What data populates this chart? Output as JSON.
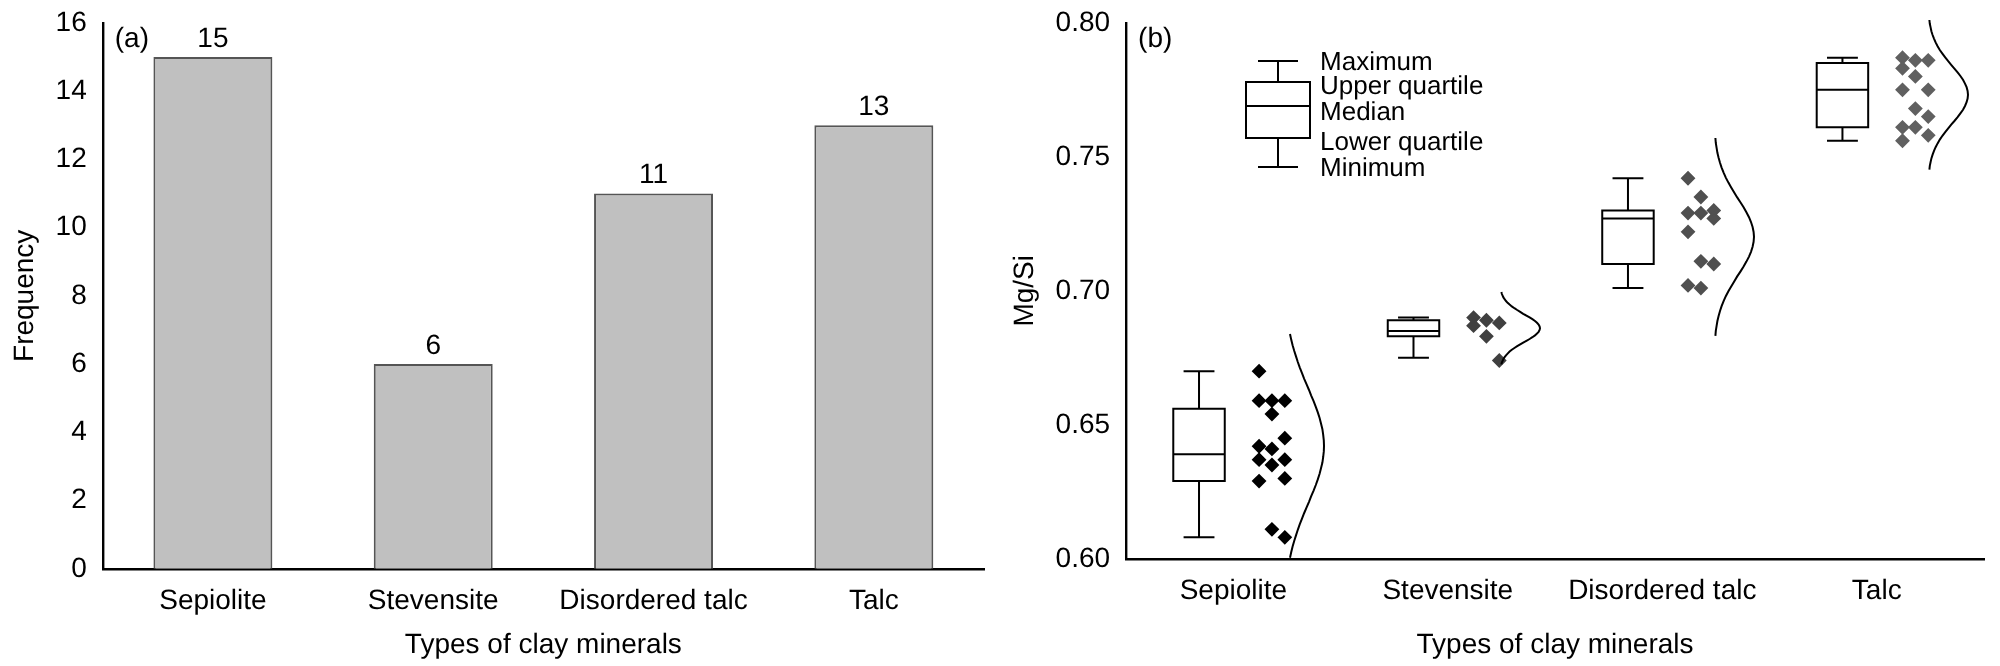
{
  "chart_data": [
    {
      "type": "bar",
      "title": "(a)",
      "xlabel": "Types of clay minerals",
      "ylabel": "Frequency",
      "categories": [
        "Sepiolite",
        "Stevensite",
        "Disordered talc",
        "Talc"
      ],
      "values": [
        15,
        6,
        11,
        13
      ],
      "color": "#c0c0c0",
      "ylim": [
        0,
        16
      ],
      "yticks": [
        0,
        2,
        4,
        6,
        8,
        10,
        12,
        14,
        16
      ],
      "data_labels": true,
      "grid": false,
      "legend": false
    },
    {
      "type": "box",
      "title": "(b)",
      "xlabel": "Types of clay minerals",
      "ylabel": "Mg/Si",
      "categories": [
        "Sepiolite",
        "Stevensite",
        "Disordered talc",
        "Talc"
      ],
      "boxes": [
        {
          "low": 0.608,
          "q1": 0.629,
          "median": 0.639,
          "q3": 0.656,
          "high": 0.67
        },
        {
          "low": 0.675,
          "q1": 0.683,
          "median": 0.685,
          "q3": 0.689,
          "high": 0.69
        },
        {
          "low": 0.701,
          "q1": 0.71,
          "median": 0.727,
          "q3": 0.73,
          "high": 0.742
        },
        {
          "low": 0.756,
          "q1": 0.761,
          "median": 0.775,
          "q3": 0.785,
          "high": 0.787
        }
      ],
      "series": [
        {
          "type": "scatter",
          "color": "#000000",
          "x": [
            "Sepiolite",
            "Sepiolite",
            "Sepiolite",
            "Sepiolite",
            "Sepiolite",
            "Sepiolite",
            "Sepiolite",
            "Sepiolite",
            "Sepiolite",
            "Sepiolite",
            "Sepiolite",
            "Sepiolite",
            "Sepiolite",
            "Sepiolite",
            "Sepiolite"
          ],
          "values": [
            0.67,
            0.659,
            0.659,
            0.659,
            0.654,
            0.645,
            0.642,
            0.641,
            0.637,
            0.637,
            0.635,
            0.63,
            0.629,
            0.611,
            0.608
          ]
        },
        {
          "type": "scatter",
          "color": "#404040",
          "x": [
            "Stevensite",
            "Stevensite",
            "Stevensite",
            "Stevensite",
            "Stevensite",
            "Stevensite"
          ],
          "values": [
            0.69,
            0.689,
            0.688,
            0.687,
            0.683,
            0.674
          ]
        },
        {
          "type": "scatter",
          "color": "#505050",
          "x": [
            "Disordered talc",
            "Disordered talc",
            "Disordered talc",
            "Disordered talc",
            "Disordered talc",
            "Disordered talc",
            "Disordered talc",
            "Disordered talc",
            "Disordered talc",
            "Disordered talc",
            "Disordered talc"
          ],
          "values": [
            0.742,
            0.735,
            0.73,
            0.729,
            0.729,
            0.727,
            0.722,
            0.711,
            0.71,
            0.702,
            0.701
          ]
        },
        {
          "type": "scatter",
          "color": "#606060",
          "x": [
            "Talc",
            "Talc",
            "Talc",
            "Talc",
            "Talc",
            "Talc",
            "Talc",
            "Talc",
            "Talc",
            "Talc",
            "Talc",
            "Talc",
            "Talc"
          ],
          "values": [
            0.787,
            0.786,
            0.786,
            0.783,
            0.78,
            0.775,
            0.775,
            0.768,
            0.765,
            0.761,
            0.761,
            0.758,
            0.756
          ]
        }
      ],
      "annotations": [
        "Maximum",
        "Upper quartile",
        "Median",
        "Lower quartile",
        "Minimum"
      ],
      "marker": "diamond",
      "ylim": [
        0.6,
        0.8
      ],
      "yticks": [
        {
          "value": 0.6,
          "label": "0.60"
        },
        {
          "value": 0.65,
          "label": "0.65"
        },
        {
          "value": 0.7,
          "label": "0.70"
        },
        {
          "value": 0.75,
          "label": "0.75"
        },
        {
          "value": 0.8,
          "label": "0.80"
        }
      ],
      "grid": false,
      "legend": false
    }
  ]
}
